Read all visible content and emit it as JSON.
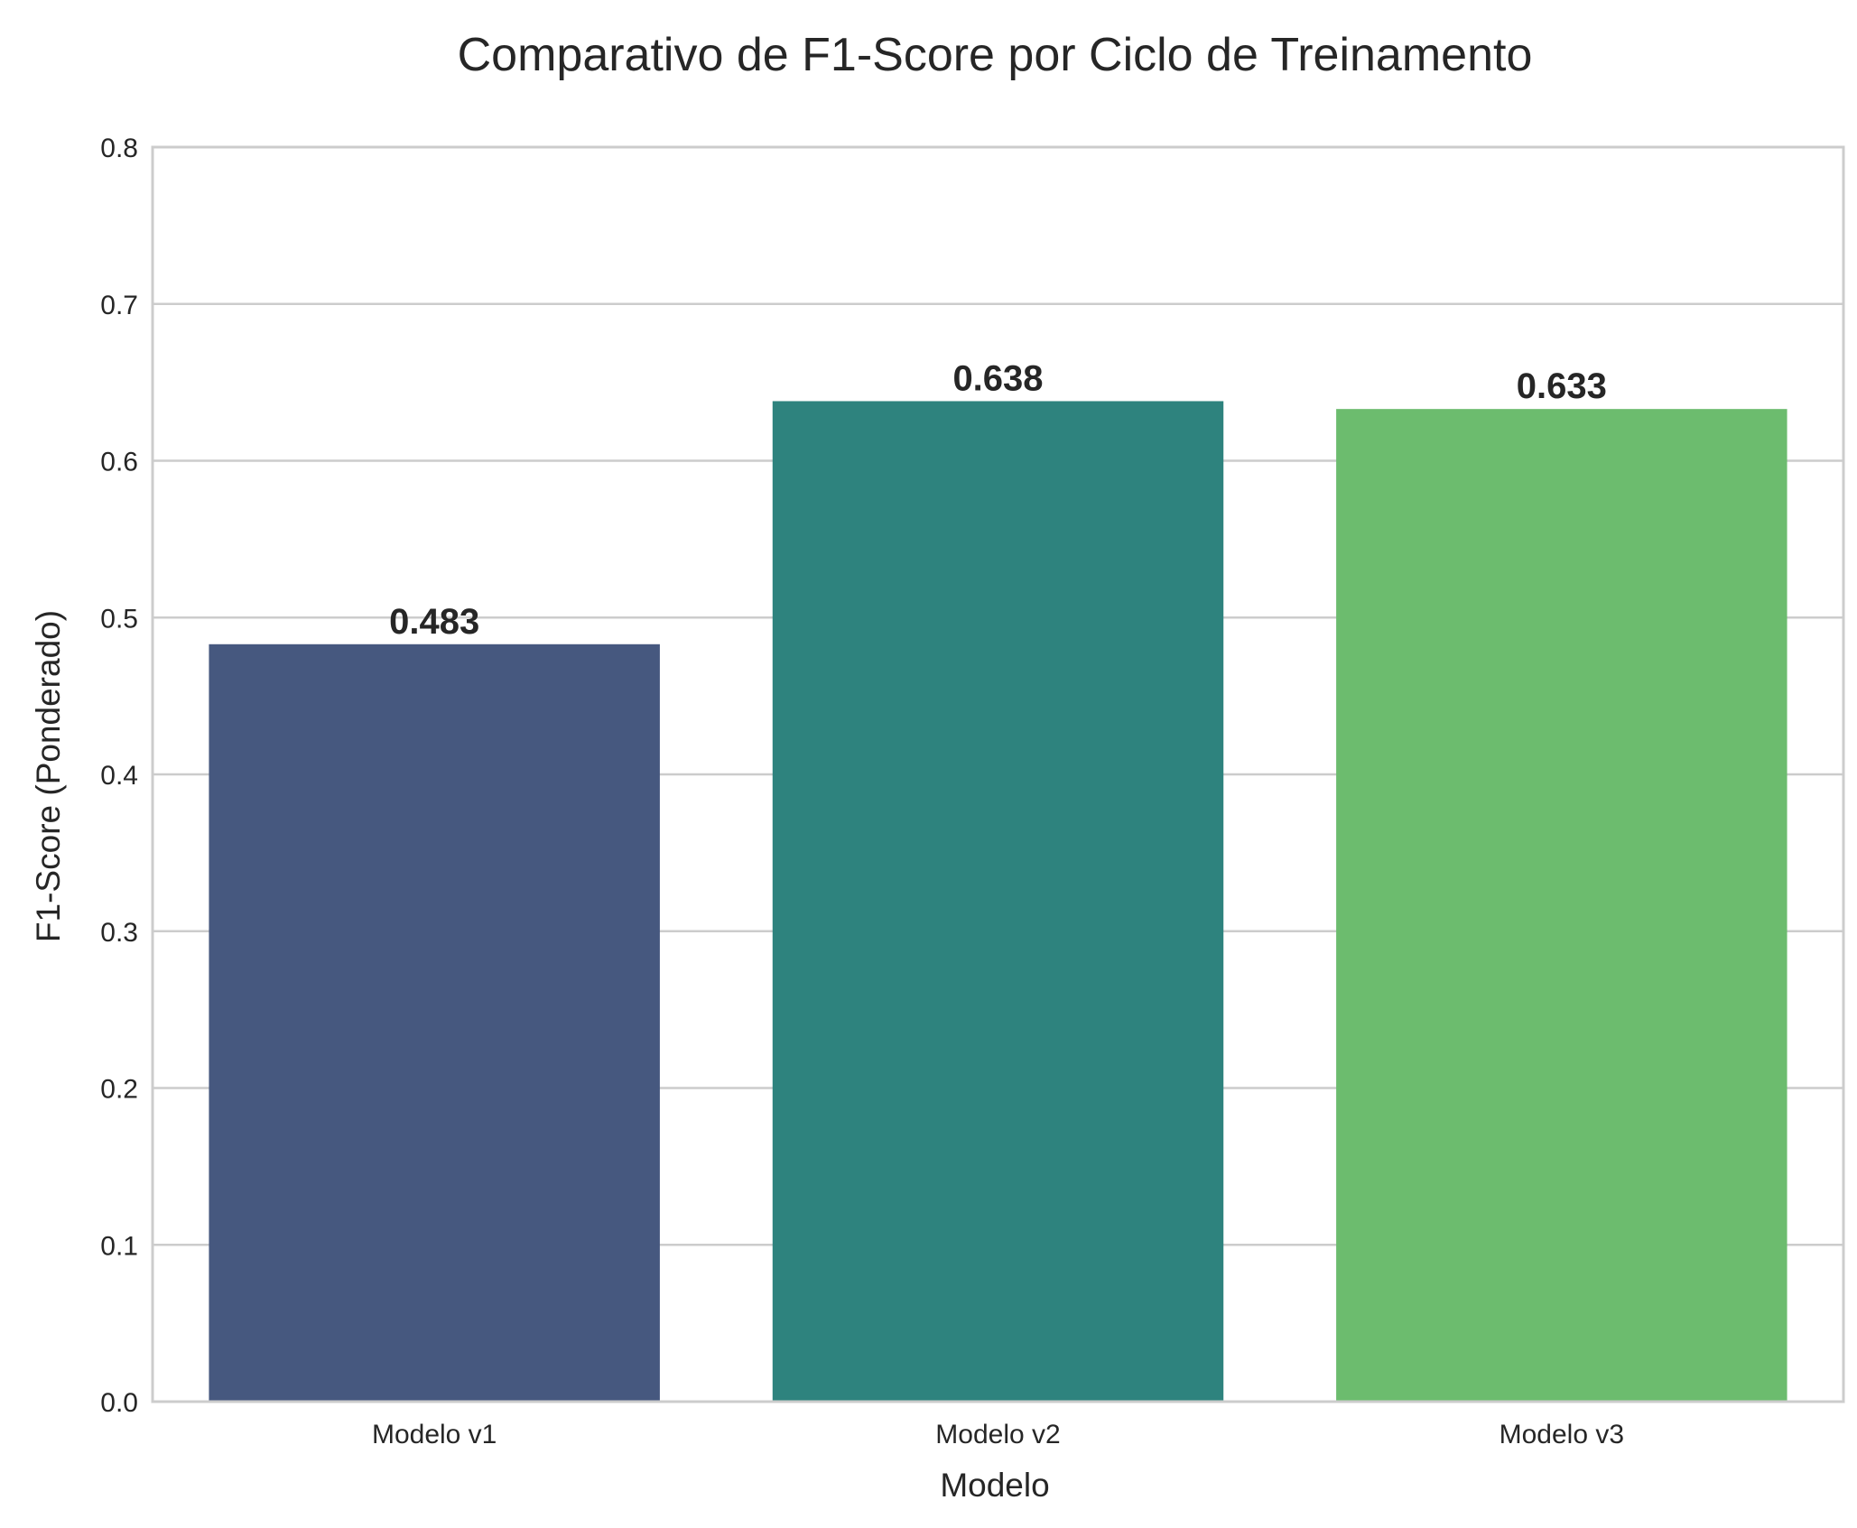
{
  "chart_data": {
    "type": "bar",
    "title": "Comparativo de F1-Score por Ciclo de Treinamento",
    "xlabel": "Modelo",
    "ylabel": "F1-Score (Ponderado)",
    "categories": [
      "Modelo v1",
      "Modelo v2",
      "Modelo v3"
    ],
    "values": [
      0.483,
      0.638,
      0.633
    ],
    "value_labels": [
      "0.483",
      "0.638",
      "0.633"
    ],
    "colors": [
      "#46587f",
      "#2e837e",
      "#6cbc6e"
    ],
    "ylim": [
      0,
      0.8
    ],
    "yticks": [
      0.0,
      0.1,
      0.2,
      0.3,
      0.4,
      0.5,
      0.6,
      0.7,
      0.8
    ],
    "ytick_labels": [
      "0.0",
      "0.1",
      "0.2",
      "0.3",
      "0.4",
      "0.5",
      "0.6",
      "0.7",
      "0.8"
    ],
    "grid": true,
    "grid_axis": "y",
    "grid_color": "#cccccc",
    "text_color": "#262626"
  }
}
